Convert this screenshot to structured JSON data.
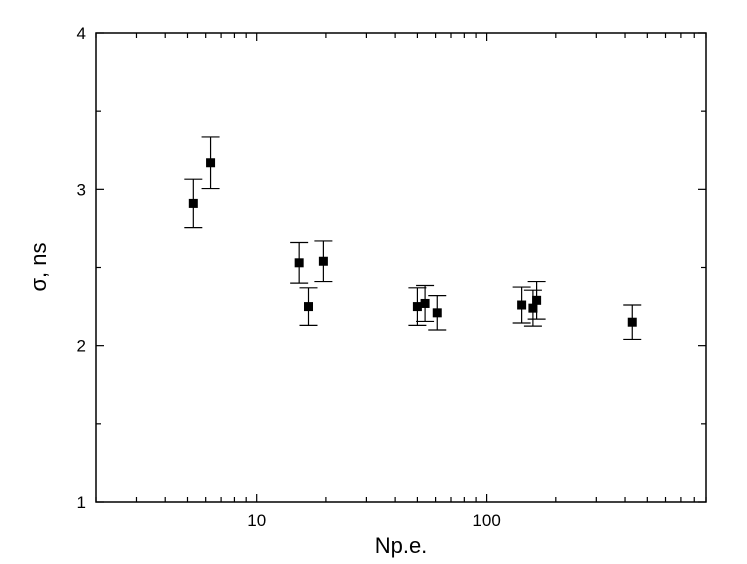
{
  "chart_data": {
    "type": "scatter",
    "xlabel": "Np.e.",
    "ylabel": "σ, ns",
    "x_scale": "log",
    "xlim": [
      2,
      900
    ],
    "ylim": [
      1,
      4
    ],
    "x_major_ticks": [
      10,
      100
    ],
    "x_tick_labels": [
      "10",
      "100"
    ],
    "y_major_ticks": [
      1,
      2,
      3,
      4
    ],
    "y_tick_labels": [
      "1",
      "2",
      "3",
      "4"
    ],
    "y_minor_step": 0.5,
    "grid": false,
    "legend": "none",
    "marker": "square",
    "color": "#000000",
    "points": [
      {
        "x": 5.3,
        "y": 2.91,
        "err": 0.155
      },
      {
        "x": 6.3,
        "y": 3.17,
        "err": 0.165
      },
      {
        "x": 15.3,
        "y": 2.53,
        "err": 0.13
      },
      {
        "x": 16.8,
        "y": 2.25,
        "err": 0.12
      },
      {
        "x": 19.5,
        "y": 2.54,
        "err": 0.13
      },
      {
        "x": 50,
        "y": 2.25,
        "err": 0.12
      },
      {
        "x": 54,
        "y": 2.27,
        "err": 0.115
      },
      {
        "x": 61,
        "y": 2.21,
        "err": 0.11
      },
      {
        "x": 142,
        "y": 2.26,
        "err": 0.115
      },
      {
        "x": 159,
        "y": 2.24,
        "err": 0.115
      },
      {
        "x": 165,
        "y": 2.29,
        "err": 0.12
      },
      {
        "x": 430,
        "y": 2.15,
        "err": 0.11
      }
    ]
  }
}
